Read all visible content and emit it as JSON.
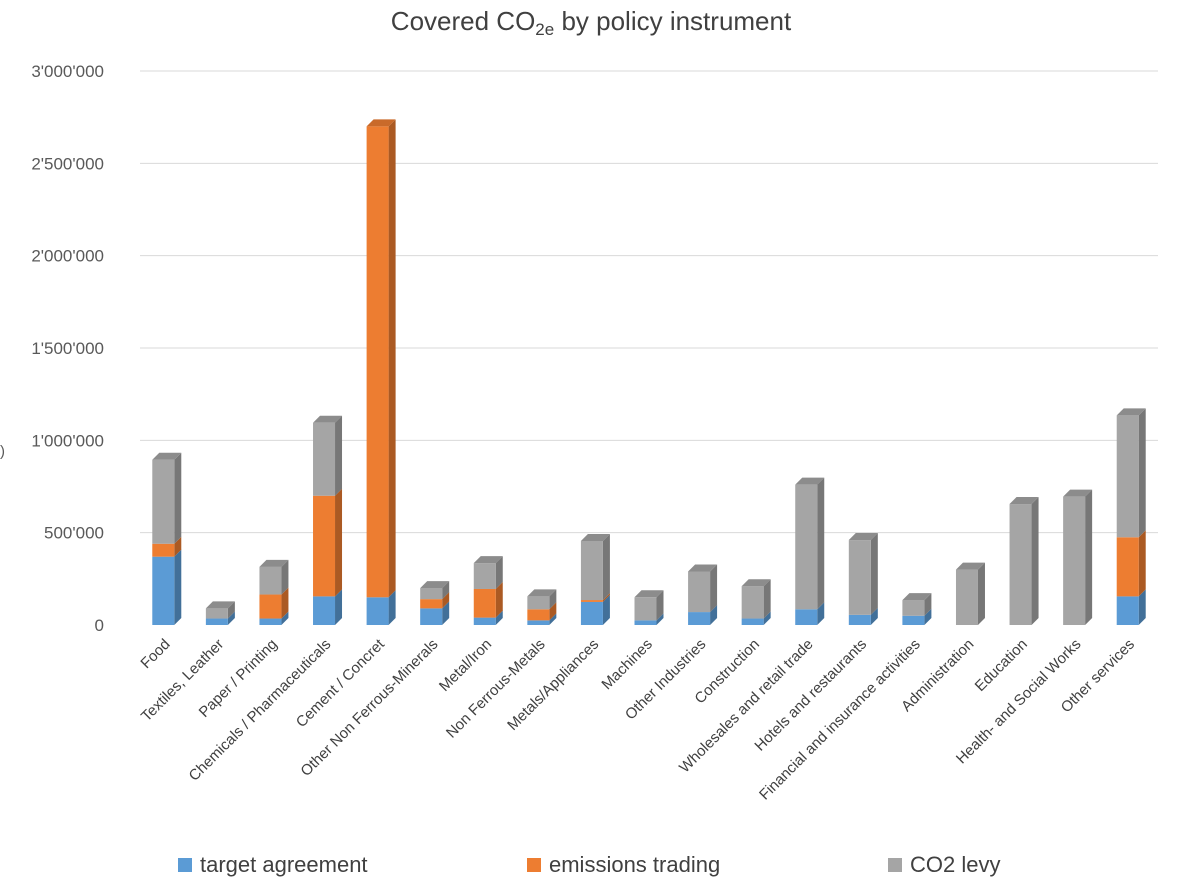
{
  "chart_data": {
    "type": "bar",
    "stacked": true,
    "title_main": "Covered CO",
    "title_sub": "2e",
    "title_rest": " by policy instrument",
    "ylim": [
      0,
      3000000
    ],
    "yticks": [
      "0",
      "500'000",
      "1'000'000",
      "1'500'000",
      "2'000'000",
      "2'500'000",
      "3'000'000"
    ],
    "ytick_values": [
      0,
      500000,
      1000000,
      1500000,
      2000000,
      2500000,
      3000000
    ],
    "grid": true,
    "legend_position": "bottom",
    "categories": [
      "Food",
      "Textiles, Leather",
      "Paper / Printing",
      "Chemicals / Pharmaceuticals",
      "Cement / Concret",
      "Other Non Ferrous-Minerals",
      "Metal/Iron",
      "Non Ferrous-Metals",
      "Metals/Appliances",
      "Machines",
      "Other Industries",
      "Construction",
      "Wholesales and retail trade",
      "Hotels and restaurants",
      "Financial and insurance activities",
      "Administration",
      "Education",
      "Health- and Social Works",
      "Other services"
    ],
    "series": [
      {
        "name": "target agreement",
        "color": "#5b9bd5",
        "values": [
          370000,
          35000,
          35000,
          155000,
          150000,
          90000,
          40000,
          25000,
          125000,
          25000,
          70000,
          35000,
          85000,
          55000,
          50000,
          0,
          0,
          0,
          155000
        ]
      },
      {
        "name": "emissions trading",
        "color": "#ed7d31",
        "values": [
          70000,
          0,
          130000,
          545000,
          2550000,
          50000,
          155000,
          60000,
          10000,
          0,
          0,
          0,
          0,
          0,
          0,
          0,
          0,
          0,
          320000
        ]
      },
      {
        "name": "CO2 levy",
        "color": "#a5a5a5",
        "values": [
          455000,
          55000,
          150000,
          395000,
          0,
          60000,
          140000,
          70000,
          320000,
          125000,
          220000,
          175000,
          675000,
          405000,
          85000,
          300000,
          655000,
          695000,
          660000
        ]
      }
    ],
    "left_mark": ")"
  }
}
